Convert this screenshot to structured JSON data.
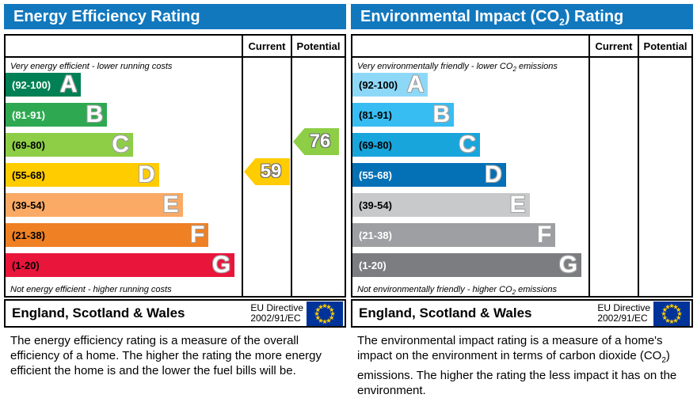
{
  "chart_data": [
    {
      "type": "bar",
      "title": "Energy Efficiency Rating",
      "categories": [
        "A (92-100)",
        "B (81-91)",
        "C (69-80)",
        "D (55-68)",
        "E (39-54)",
        "F (21-38)",
        "G (1-20)"
      ],
      "values": [
        32,
        43,
        54,
        65,
        75,
        86,
        97
      ],
      "columns": [
        "Current",
        "Potential"
      ],
      "current": 59,
      "current_band": "D",
      "potential": 76,
      "potential_band": "C",
      "xlabel": "",
      "ylabel": "",
      "legend": "none"
    },
    {
      "type": "bar",
      "title": "Environmental Impact (CO2) Rating",
      "categories": [
        "A (92-100)",
        "B (81-91)",
        "C (69-80)",
        "D (55-68)",
        "E (39-54)",
        "F (21-38)",
        "G (1-20)"
      ],
      "values": [
        32,
        43,
        54,
        65,
        75,
        86,
        97
      ],
      "columns": [
        "Current",
        "Potential"
      ],
      "current": null,
      "potential": null,
      "xlabel": "",
      "ylabel": "",
      "legend": "none"
    }
  ],
  "colors": {
    "header_bg": "#1278be",
    "eu_flag_bg": "#003399",
    "eu_star": "#ffcc00",
    "border": "#000000"
  },
  "left_panel": {
    "title": "Energy Efficiency Rating",
    "col_current": "Current",
    "col_potential": "Potential",
    "top_note": "Very energy efficient - lower running costs",
    "bottom_note": "Not energy efficient - higher running costs",
    "bands": [
      {
        "range": "(92-100)",
        "letter": "A",
        "color": "#008054",
        "range_color": "#ffffff",
        "width_pct": 32
      },
      {
        "range": "(81-91)",
        "letter": "B",
        "color": "#2ea951",
        "range_color": "#ffffff",
        "width_pct": 43
      },
      {
        "range": "(69-80)",
        "letter": "C",
        "color": "#8dce46",
        "range_color": "#000000",
        "width_pct": 54
      },
      {
        "range": "(55-68)",
        "letter": "D",
        "color": "#ffcc00",
        "range_color": "#000000",
        "width_pct": 65
      },
      {
        "range": "(39-54)",
        "letter": "E",
        "color": "#fbaa65",
        "range_color": "#000000",
        "width_pct": 75
      },
      {
        "range": "(21-38)",
        "letter": "F",
        "color": "#ef8023",
        "range_color": "#000000",
        "width_pct": 86
      },
      {
        "range": "(1-20)",
        "letter": "G",
        "color": "#e9153b",
        "range_color": "#000000",
        "width_pct": 97
      }
    ],
    "current": {
      "value": "59",
      "color": "#ffcc00",
      "band": "D"
    },
    "potential": {
      "value": "76",
      "color": "#8dce46",
      "band": "C"
    },
    "footer_region": "England, Scotland & Wales",
    "directive_line1": "EU Directive",
    "directive_line2": "2002/91/EC",
    "description": "The energy efficiency rating is a measure of the overall efficiency of a home. The higher the rating the more energy efficient the home is and the lower the fuel bills will be."
  },
  "right_panel": {
    "title_pre": "Environmental Impact (CO",
    "title_sub": "2",
    "title_post": ") Rating",
    "col_current": "Current",
    "col_potential": "Potential",
    "top_note_pre": "Very environmentally friendly - lower CO",
    "top_note_sub": "2",
    "top_note_post": " emissions",
    "bottom_note_pre": "Not environmentally friendly - higher CO",
    "bottom_note_sub": "2",
    "bottom_note_post": " emissions",
    "bands": [
      {
        "range": "(92-100)",
        "letter": "A",
        "color": "#8ed8f7",
        "range_color": "#000000",
        "width_pct": 32
      },
      {
        "range": "(81-91)",
        "letter": "B",
        "color": "#38bdf2",
        "range_color": "#000000",
        "width_pct": 43
      },
      {
        "range": "(69-80)",
        "letter": "C",
        "color": "#18a5dc",
        "range_color": "#000000",
        "width_pct": 54
      },
      {
        "range": "(55-68)",
        "letter": "D",
        "color": "#0470b6",
        "range_color": "#ffffff",
        "width_pct": 65
      },
      {
        "range": "(39-54)",
        "letter": "E",
        "color": "#c8c9cb",
        "range_color": "#000000",
        "width_pct": 75
      },
      {
        "range": "(21-38)",
        "letter": "F",
        "color": "#9d9fa2",
        "range_color": "#ffffff",
        "width_pct": 86
      },
      {
        "range": "(1-20)",
        "letter": "G",
        "color": "#7b7d80",
        "range_color": "#ffffff",
        "width_pct": 97
      }
    ],
    "current": {
      "value": null
    },
    "potential": {
      "value": null
    },
    "footer_region": "England, Scotland & Wales",
    "directive_line1": "EU Directive",
    "directive_line2": "2002/91/EC",
    "description_pre": "The environmental impact rating is a measure of a home's impact on the environment in terms of carbon dioxide (CO",
    "description_sub": "2",
    "description_post": ") emissions. The higher the rating the less impact it has on the environment."
  }
}
